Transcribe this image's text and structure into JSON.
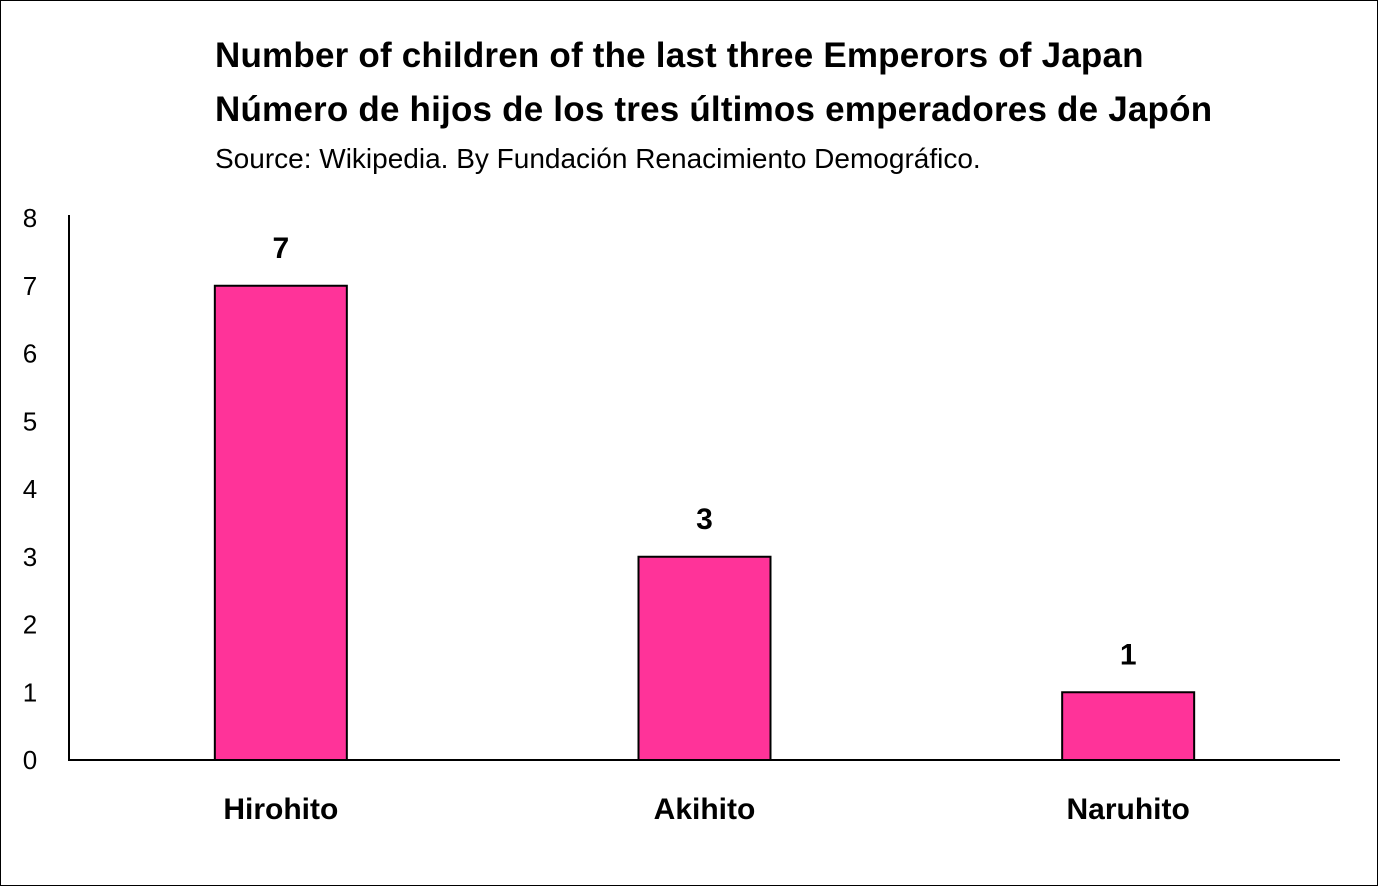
{
  "chart_data": {
    "type": "bar",
    "title": "Number of children of the last three Emperors of Japan",
    "title_es": "Número de hijos de los tres últimos emperadores de Japón",
    "subtitle": "Source: Wikipedia. By Fundación Renacimiento Demográfico.",
    "categories": [
      "Hirohito",
      "Akihito",
      "Naruhito"
    ],
    "values": [
      7,
      3,
      1
    ],
    "data_labels": [
      "7",
      "3",
      "1"
    ],
    "ylim": [
      0,
      8
    ],
    "yticks": [
      "0",
      "1",
      "2",
      "3",
      "4",
      "5",
      "6",
      "7",
      "8"
    ],
    "xlabel": "",
    "ylabel": "",
    "grid": false,
    "bar_color": "#FF3399"
  }
}
